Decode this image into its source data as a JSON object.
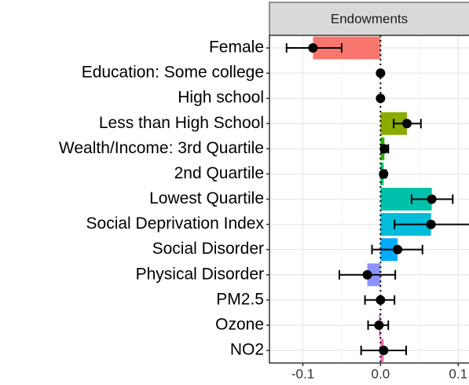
{
  "chart_data": {
    "type": "bar",
    "facet": "Endowments",
    "categories": [
      "Female",
      "Education: Some college",
      "High school",
      "Less than High School",
      "Wealth/Income: 3rd Quartile",
      "2nd Quartile",
      "Lowest Quartile",
      "Social Deprivation Index",
      "Social Disorder",
      "Physical Disorder",
      "PM2.5",
      "Ozone",
      "NO2"
    ],
    "values": [
      -0.087,
      0.0,
      0.0,
      0.034,
      0.005,
      0.004,
      0.066,
      0.065,
      0.022,
      -0.017,
      0.0,
      -0.002,
      0.004
    ],
    "ci_low": [
      -0.121,
      0.0,
      0.0,
      0.017,
      0.001,
      0.002,
      0.04,
      0.018,
      -0.011,
      -0.053,
      -0.02,
      -0.016,
      -0.025
    ],
    "ci_high": [
      -0.05,
      0.0,
      0.0,
      0.052,
      0.01,
      0.007,
      0.093,
      0.115,
      0.054,
      0.019,
      0.018,
      0.01,
      0.033
    ],
    "colors": [
      "#F8766D",
      "#E18A00",
      "#BE9C00",
      "#8CAB00",
      "#24B700",
      "#00BE70",
      "#00C1AB",
      "#00BBDA",
      "#00ACFC",
      "#8B93FF",
      "#D575FE",
      "#F962DD",
      "#FF65AC"
    ],
    "xlim": [
      -0.143,
      0.12
    ],
    "xticks": [
      -0.1,
      {
        "value": 0,
        "label": "0.0"
      },
      0.1
    ],
    "minor_xticks": [
      -0.05,
      0.05
    ],
    "grid": true
  }
}
